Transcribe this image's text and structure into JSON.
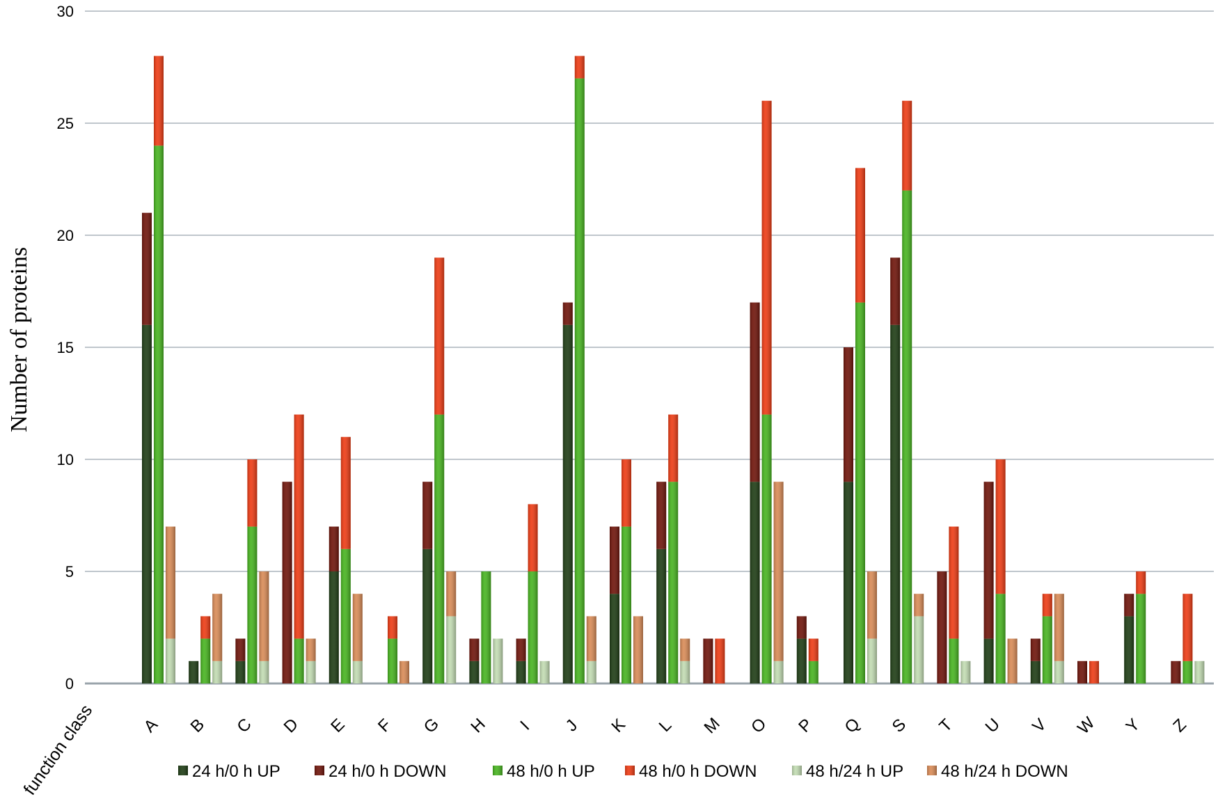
{
  "chart_data": {
    "type": "bar",
    "stacked": true,
    "ylabel": "Number of proteins",
    "xlabel": "function class",
    "ylim": [
      0,
      30
    ],
    "yticks": [
      0,
      5,
      10,
      15,
      20,
      25,
      30
    ],
    "grid": true,
    "legend_position": "bottom",
    "categories": [
      "A",
      "B",
      "C",
      "D",
      "E",
      "F",
      "G",
      "H",
      "I",
      "J",
      "K",
      "L",
      "M",
      "O",
      "P",
      "Q",
      "S",
      "T",
      "U",
      "V",
      "W",
      "Y",
      "Z"
    ],
    "groups": [
      {
        "name": "24 h/0 h",
        "series": [
          {
            "name": "24 h/0 h UP",
            "color": "#1c3b12",
            "values": [
              16,
              1,
              1,
              0,
              5,
              0,
              6,
              1,
              1,
              16,
              4,
              6,
              0,
              9,
              2,
              9,
              16,
              0,
              2,
              1,
              0,
              3,
              0
            ]
          },
          {
            "name": "24 h/0 h DOWN",
            "color": "#6e1208",
            "values": [
              5,
              0,
              1,
              9,
              2,
              0,
              3,
              1,
              1,
              1,
              3,
              3,
              2,
              8,
              1,
              6,
              3,
              5,
              7,
              1,
              1,
              1,
              1
            ]
          }
        ]
      },
      {
        "name": "48 h/0 h",
        "series": [
          {
            "name": "48 h/0 h UP",
            "color": "#46b41e",
            "values": [
              24,
              2,
              7,
              2,
              6,
              2,
              12,
              5,
              5,
              27,
              7,
              9,
              0,
              12,
              1,
              17,
              22,
              2,
              4,
              3,
              0,
              4,
              1
            ]
          },
          {
            "name": "48 h/0 h DOWN",
            "color": "#ee3a12",
            "values": [
              4,
              1,
              3,
              10,
              5,
              1,
              7,
              0,
              3,
              1,
              3,
              3,
              2,
              14,
              1,
              6,
              4,
              5,
              6,
              1,
              1,
              1,
              3
            ]
          }
        ]
      },
      {
        "name": "48 h/24 h",
        "series": [
          {
            "name": "48 h/24 h UP",
            "color": "#c2dcb2",
            "values": [
              2,
              1,
              1,
              1,
              1,
              0,
              3,
              2,
              1,
              1,
              0,
              1,
              0,
              1,
              0,
              2,
              3,
              1,
              0,
              1,
              0,
              0,
              1
            ]
          },
          {
            "name": "48 h/24 h DOWN",
            "color": "#d98a55",
            "values": [
              5,
              3,
              4,
              1,
              3,
              1,
              2,
              0,
              0,
              2,
              3,
              1,
              0,
              8,
              0,
              3,
              1,
              0,
              2,
              3,
              0,
              0,
              0
            ]
          }
        ]
      }
    ]
  }
}
